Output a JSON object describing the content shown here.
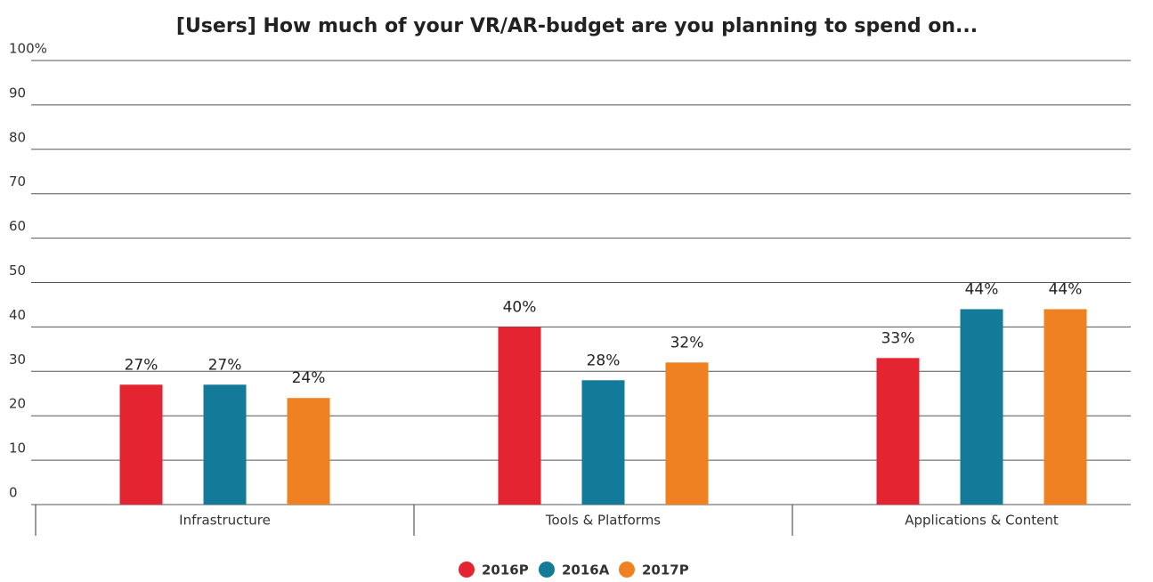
{
  "chart_data": {
    "type": "bar",
    "title": "[Users] How much of your VR/AR-budget are you planning to spend on...",
    "categories": [
      "Infrastructure",
      "Tools & Platforms",
      "Applications & Content"
    ],
    "series": [
      {
        "name": "2016P",
        "color": "#e52431",
        "values": [
          27,
          40,
          33
        ],
        "value_labels": [
          "27%",
          "40%",
          "33%"
        ]
      },
      {
        "name": "2016A",
        "color": "#137a99",
        "values": [
          27,
          28,
          44
        ],
        "value_labels": [
          "27%",
          "28%",
          "44%"
        ]
      },
      {
        "name": "2017P",
        "color": "#f08122",
        "values": [
          24,
          32,
          44
        ],
        "value_labels": [
          "24%",
          "32%",
          "44%"
        ]
      }
    ],
    "ylim": [
      0,
      100
    ],
    "yticks": [
      0,
      10,
      20,
      30,
      40,
      50,
      60,
      70,
      80,
      90,
      {
        "value": 100,
        "label": "100%"
      }
    ],
    "grid": true
  }
}
